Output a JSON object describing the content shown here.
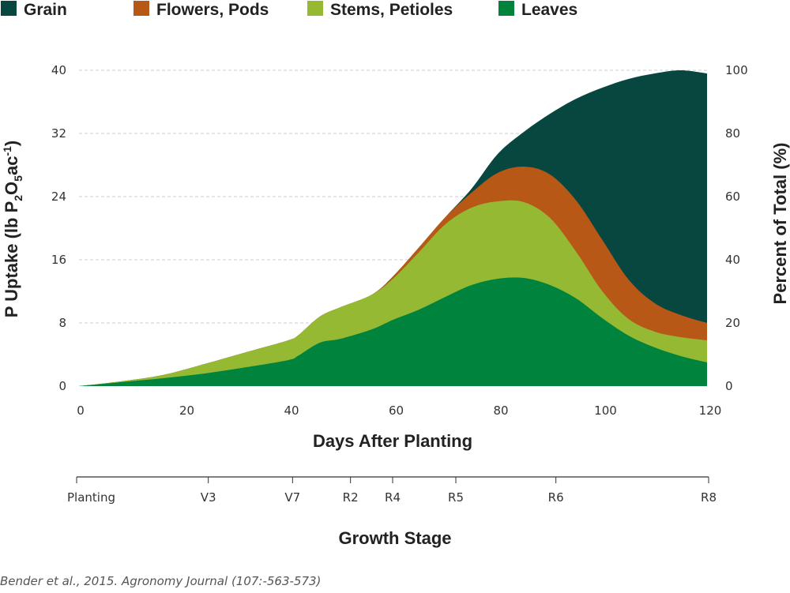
{
  "chart_data": {
    "type": "area",
    "stacked": true,
    "legend": {
      "placement": "top",
      "entries": [
        "Grain",
        "Flowers, Pods",
        "Stems, Petioles",
        "Leaves"
      ]
    },
    "xlabel": "Days After Planting",
    "ylabel": "P Uptake  (lb P",
    "ylabel_sub1": "2",
    "ylabel_mid": "O",
    "ylabel_sub2": "5",
    "ylabel_end": "ac",
    "ylabel_sup": "-1",
    "ylabel_close": ")",
    "y2label": "Percent of Total (%)",
    "xlim": [
      0,
      120
    ],
    "ylim": [
      0,
      40
    ],
    "y2lim": [
      0,
      100
    ],
    "xticks": [
      0,
      20,
      40,
      60,
      80,
      100,
      120
    ],
    "yticks": [
      0,
      8,
      16,
      24,
      32,
      40
    ],
    "y2ticks": [
      0,
      20,
      40,
      60,
      80,
      100
    ],
    "grid": "horizontal dashed",
    "x": [
      0,
      8,
      16,
      24,
      32,
      40,
      42,
      46,
      50,
      56,
      60,
      65,
      70,
      75,
      80,
      85,
      90,
      95,
      100,
      105,
      110,
      115,
      120
    ],
    "series": [
      {
        "name": "Leaves",
        "color": "#00843d",
        "values": [
          0,
          0.5,
          1.0,
          1.6,
          2.4,
          3.3,
          3.9,
          5.5,
          6.0,
          7.2,
          8.4,
          9.7,
          11.3,
          12.8,
          13.6,
          13.7,
          12.8,
          11.1,
          8.6,
          6.4,
          4.9,
          3.8,
          3.0
        ]
      },
      {
        "name": "Stems, Petioles",
        "color": "#95b932",
        "values": [
          0,
          0.1,
          0.4,
          1.2,
          1.9,
          2.5,
          2.6,
          3.3,
          4.0,
          4.4,
          5.2,
          7.3,
          9.2,
          9.8,
          9.8,
          9.6,
          8.5,
          5.9,
          3.4,
          2.1,
          2.0,
          2.4,
          2.8
        ]
      },
      {
        "name": "Flowers, Pods",
        "color": "#b85817",
        "values": [
          0,
          0,
          0,
          0,
          0,
          0,
          0,
          0,
          0,
          0,
          0.3,
          0.6,
          0.9,
          1.9,
          3.6,
          4.5,
          5.5,
          6.5,
          6.5,
          5.0,
          3.6,
          2.8,
          2.2
        ]
      },
      {
        "name": "Grain",
        "color": "#08473f",
        "values": [
          0,
          0,
          0,
          0,
          0,
          0,
          0,
          0,
          0,
          0,
          0,
          0,
          0,
          0.5,
          2.4,
          4.4,
          7.7,
          12.9,
          19.3,
          25.4,
          29.1,
          31.0,
          31.6
        ]
      }
    ],
    "growth_stage_axis": {
      "title": "Growth Stage",
      "stages": [
        {
          "label": "Planting",
          "day": 0
        },
        {
          "label": "V3",
          "day": 25
        },
        {
          "label": "V7",
          "day": 41
        },
        {
          "label": "R2",
          "day": 52
        },
        {
          "label": "R4",
          "day": 60
        },
        {
          "label": "R5",
          "day": 72
        },
        {
          "label": "R6",
          "day": 91
        },
        {
          "label": "R8",
          "day": 120
        }
      ]
    }
  },
  "citation": "Bender et al., 2015. Agronomy Journal (107:-563-573)"
}
